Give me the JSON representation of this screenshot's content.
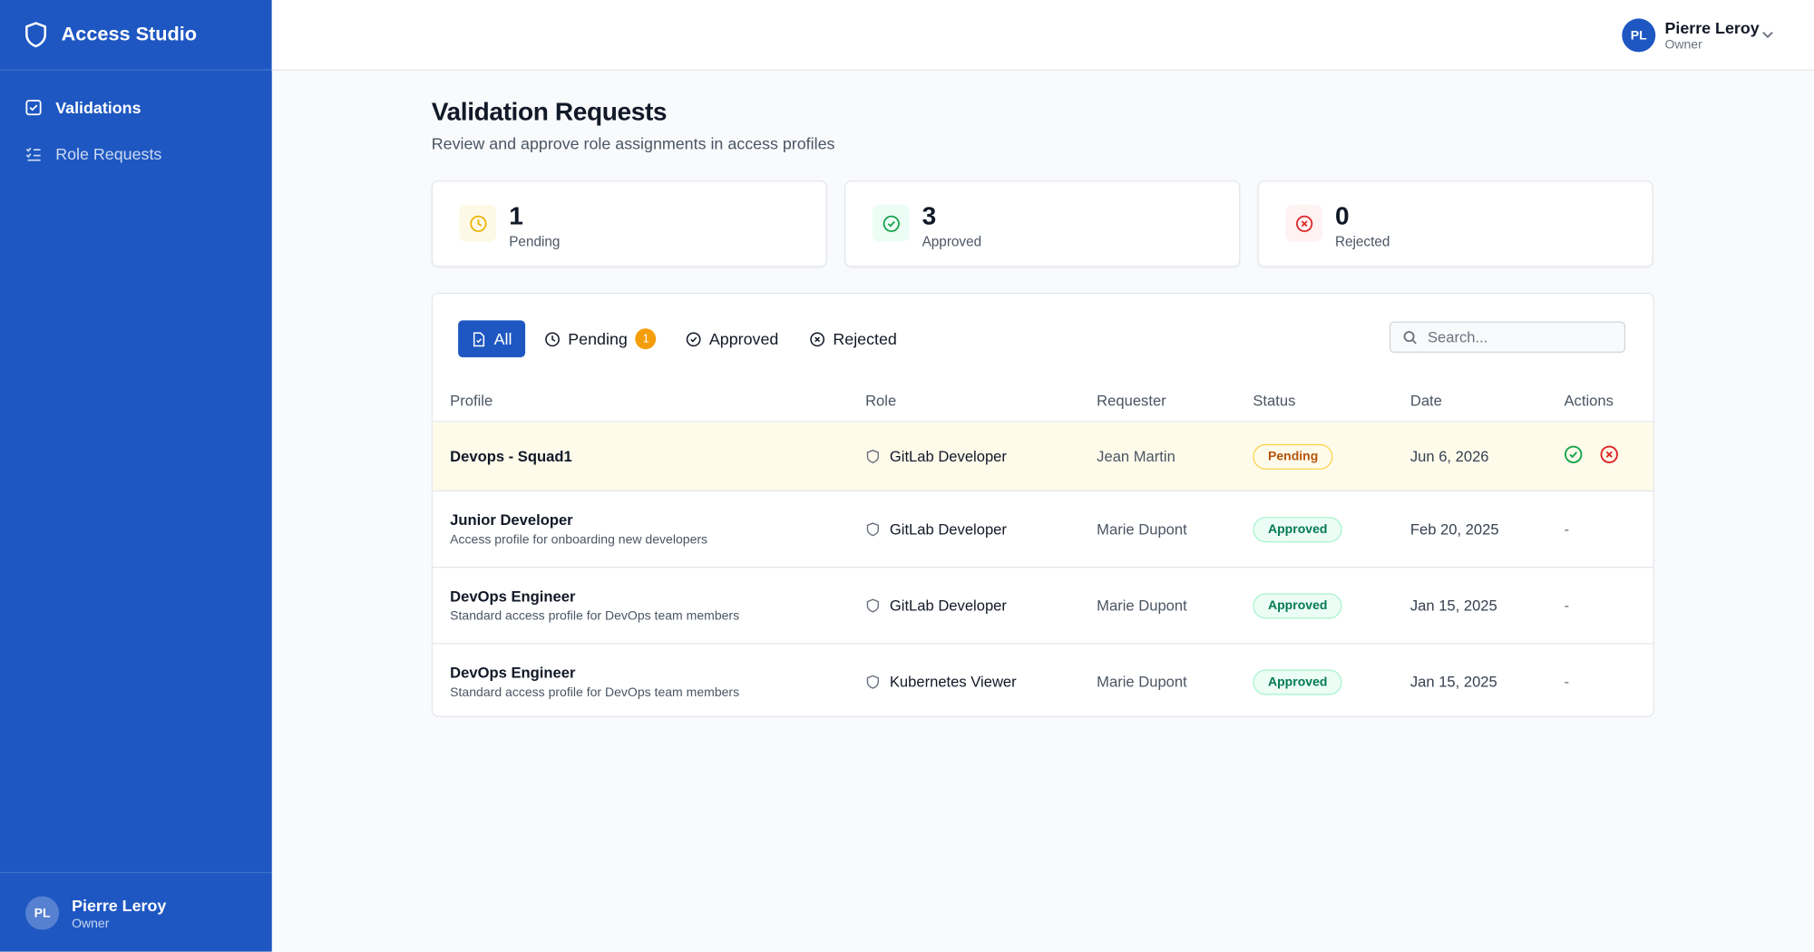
{
  "sidebar": {
    "brand": "Access Studio",
    "nav": [
      {
        "label": "Validations",
        "active": true
      },
      {
        "label": "Role Requests",
        "active": false
      }
    ],
    "user": {
      "initials": "PL",
      "name": "Pierre Leroy",
      "role": "Owner"
    }
  },
  "header": {
    "user": {
      "initials": "PL",
      "name": "Pierre Leroy",
      "role": "Owner"
    }
  },
  "page": {
    "title": "Validation Requests",
    "subtitle": "Review and approve role assignments in access profiles"
  },
  "stats": [
    {
      "value": 1,
      "label": "Pending",
      "kind": "pending"
    },
    {
      "value": 3,
      "label": "Approved",
      "kind": "approved"
    },
    {
      "value": 0,
      "label": "Rejected",
      "kind": "rejected"
    }
  ],
  "tabs": [
    {
      "label": "All",
      "active": true
    },
    {
      "label": "Pending",
      "badge": 1
    },
    {
      "label": "Approved"
    },
    {
      "label": "Rejected"
    }
  ],
  "search": {
    "placeholder": "Search..."
  },
  "table": {
    "columns": [
      "Profile",
      "Role",
      "Requester",
      "Status",
      "Date",
      "Actions"
    ],
    "rows": [
      {
        "profile": "Devops - Squad1",
        "role": "GitLab Developer",
        "requester": "Jean Martin",
        "status": "Pending",
        "date": "Jun 6, 2026"
      },
      {
        "profile": "Junior Developer",
        "description": "Access profile for onboarding new developers",
        "role": "GitLab Developer",
        "requester": "Marie Dupont",
        "status": "Approved",
        "date": "Feb 20, 2025",
        "actions": "-"
      },
      {
        "profile": "DevOps Engineer",
        "description": "Standard access profile for DevOps team members",
        "role": "GitLab Developer",
        "requester": "Marie Dupont",
        "status": "Approved",
        "date": "Jan 15, 2025",
        "actions": "-"
      },
      {
        "profile": "DevOps Engineer",
        "description": "Standard access profile for DevOps team members",
        "role": "Kubernetes Viewer",
        "requester": "Marie Dupont",
        "status": "Approved",
        "date": "Jan 15, 2025",
        "actions": "-"
      }
    ]
  }
}
